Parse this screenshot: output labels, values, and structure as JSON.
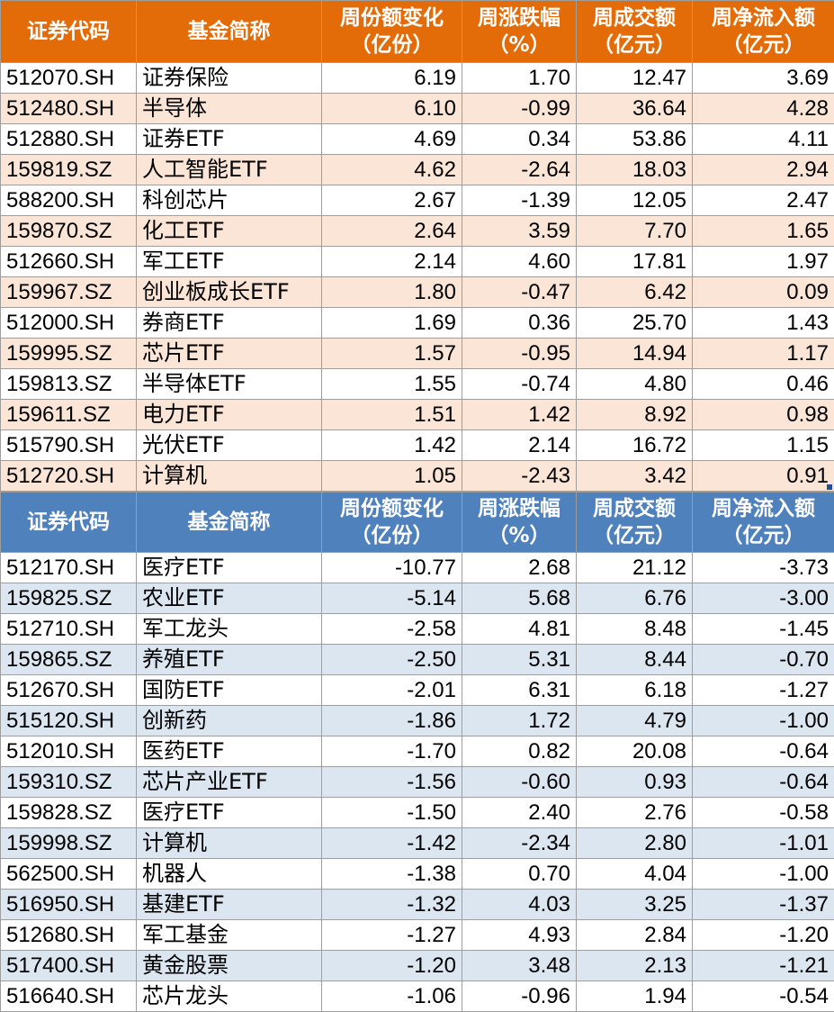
{
  "headers": {
    "code": "证券代码",
    "name": "基金简称",
    "share_change": [
      "周份额变化",
      "（亿份）"
    ],
    "change_pct": [
      "周涨跌幅",
      "（%）"
    ],
    "turnover": [
      "周成交额",
      "（亿元）"
    ],
    "net_inflow": [
      "周净流入额",
      "（亿元）"
    ]
  },
  "colors": {
    "orange_header": "#e36c09",
    "orange_band": "#fbe5d6",
    "blue_header": "#4f81bd",
    "blue_band": "#dce6f1"
  },
  "inflow_table": [
    [
      "512070.SH",
      "证券保险",
      "6.19",
      "1.70",
      "12.47",
      "3.69"
    ],
    [
      "512480.SH",
      "半导体",
      "6.10",
      "-0.99",
      "36.64",
      "4.28"
    ],
    [
      "512880.SH",
      "证券ETF",
      "4.69",
      "0.34",
      "53.86",
      "4.11"
    ],
    [
      "159819.SZ",
      "人工智能ETF",
      "4.62",
      "-2.64",
      "18.03",
      "2.94"
    ],
    [
      "588200.SH",
      "科创芯片",
      "2.67",
      "-1.39",
      "12.05",
      "2.47"
    ],
    [
      "159870.SZ",
      "化工ETF",
      "2.64",
      "3.59",
      "7.70",
      "1.65"
    ],
    [
      "512660.SH",
      "军工ETF",
      "2.14",
      "4.60",
      "17.81",
      "1.97"
    ],
    [
      "159967.SZ",
      "创业板成长ETF",
      "1.80",
      "-0.47",
      "6.42",
      "0.09"
    ],
    [
      "512000.SH",
      "券商ETF",
      "1.69",
      "0.36",
      "25.70",
      "1.43"
    ],
    [
      "159995.SZ",
      "芯片ETF",
      "1.57",
      "-0.95",
      "14.94",
      "1.17"
    ],
    [
      "159813.SZ",
      "半导体ETF",
      "1.55",
      "-0.74",
      "4.80",
      "0.46"
    ],
    [
      "159611.SZ",
      "电力ETF",
      "1.51",
      "1.42",
      "8.92",
      "0.98"
    ],
    [
      "515790.SH",
      "光伏ETF",
      "1.42",
      "2.14",
      "16.72",
      "1.15"
    ],
    [
      "512720.SH",
      "计算机",
      "1.05",
      "-2.43",
      "3.42",
      "0.91"
    ]
  ],
  "outflow_table": [
    [
      "512170.SH",
      "医疗ETF",
      "-10.77",
      "2.68",
      "21.12",
      "-3.73"
    ],
    [
      "159825.SZ",
      "农业ETF",
      "-5.14",
      "5.68",
      "6.76",
      "-3.00"
    ],
    [
      "512710.SH",
      "军工龙头",
      "-2.58",
      "4.81",
      "8.48",
      "-1.45"
    ],
    [
      "159865.SZ",
      "养殖ETF",
      "-2.50",
      "5.31",
      "8.44",
      "-0.70"
    ],
    [
      "512670.SH",
      "国防ETF",
      "-2.01",
      "6.31",
      "6.18",
      "-1.27"
    ],
    [
      "515120.SH",
      "创新药",
      "-1.86",
      "1.72",
      "4.79",
      "-1.00"
    ],
    [
      "512010.SH",
      "医药ETF",
      "-1.70",
      "0.82",
      "20.08",
      "-0.64"
    ],
    [
      "159310.SZ",
      "芯片产业ETF",
      "-1.56",
      "-0.60",
      "0.93",
      "-0.64"
    ],
    [
      "159828.SZ",
      "医疗ETF",
      "-1.50",
      "2.40",
      "2.76",
      "-0.58"
    ],
    [
      "159998.SZ",
      "计算机",
      "-1.42",
      "-2.34",
      "2.80",
      "-1.01"
    ],
    [
      "562500.SH",
      "机器人",
      "-1.38",
      "0.70",
      "4.04",
      "-1.00"
    ],
    [
      "516950.SH",
      "基建ETF",
      "-1.32",
      "4.03",
      "3.25",
      "-1.37"
    ],
    [
      "512680.SH",
      "军工基金",
      "-1.27",
      "4.93",
      "2.84",
      "-1.20"
    ],
    [
      "517400.SH",
      "黄金股票",
      "-1.20",
      "3.48",
      "2.13",
      "-1.21"
    ],
    [
      "516640.SH",
      "芯片龙头",
      "-1.06",
      "-0.96",
      "1.94",
      "-0.54"
    ]
  ]
}
